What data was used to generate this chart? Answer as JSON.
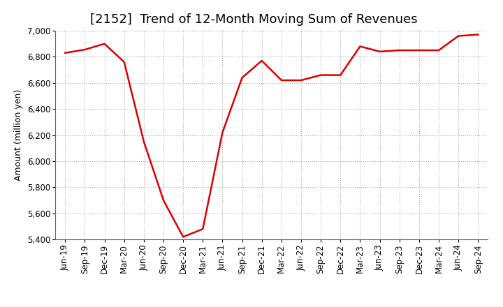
{
  "title": "[2152]  Trend of 12-Month Moving Sum of Revenues",
  "ylabel": "Amount (million yen)",
  "line_color": "#dd0000",
  "background_color": "#ffffff",
  "grid_color": "#999999",
  "ylim": [
    5400,
    7000
  ],
  "yticks": [
    5400,
    5600,
    5800,
    6000,
    6200,
    6400,
    6600,
    6800,
    7000
  ],
  "x_labels": [
    "Jun-19",
    "Sep-19",
    "Dec-19",
    "Mar-20",
    "Jun-20",
    "Sep-20",
    "Dec-20",
    "Mar-21",
    "Jun-21",
    "Sep-21",
    "Dec-21",
    "Mar-22",
    "Jun-22",
    "Sep-22",
    "Dec-22",
    "Mar-23",
    "Jun-23",
    "Sep-23",
    "Dec-23",
    "Mar-24",
    "Jun-24",
    "Sep-24"
  ],
  "values": [
    6830,
    6855,
    6900,
    6760,
    6150,
    5700,
    5420,
    5480,
    6220,
    6640,
    6770,
    6620,
    6620,
    6660,
    6660,
    6880,
    6840,
    6850,
    6850,
    6850,
    6960,
    6970
  ],
  "title_fontsize": 13,
  "label_fontsize": 9,
  "tick_fontsize": 8.5
}
